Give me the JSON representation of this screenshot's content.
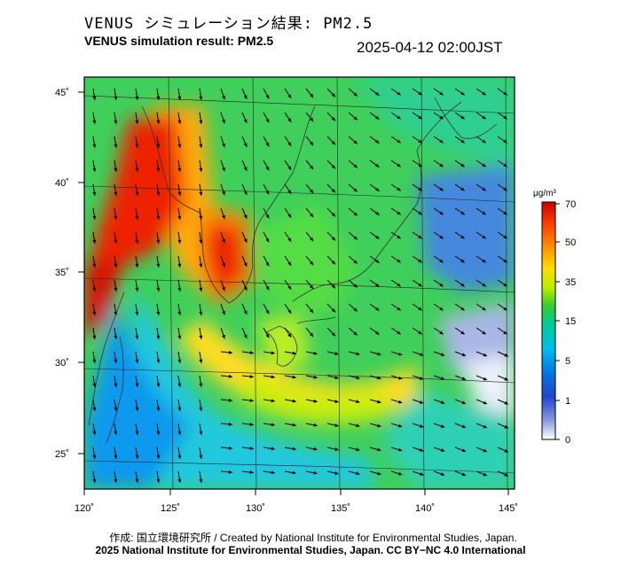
{
  "header": {
    "title_jp": "VENUS シミュレーション結果: PM2.5",
    "title_en": "VENUS simulation result: PM2.5",
    "timestamp": "2025-04-12 02:00JST"
  },
  "map": {
    "lon_labels": [
      "120˚",
      "125˚",
      "130˚",
      "135˚",
      "140˚",
      "145˚"
    ],
    "lat_labels": [
      "45˚",
      "40˚",
      "35˚",
      "30˚",
      "25˚"
    ],
    "lon_values": [
      120,
      125,
      130,
      135,
      140,
      145
    ],
    "lat_values": [
      45,
      40,
      35,
      30,
      25
    ]
  },
  "colorbar": {
    "unit": "μg/m³",
    "tick_labels": [
      "70",
      "50",
      "35",
      "15",
      "5",
      "1",
      "0"
    ],
    "colors": [
      "#cc0000",
      "#ff4400",
      "#ff9900",
      "#ffdd00",
      "#bbee00",
      "#33cc33",
      "#00cc99",
      "#00bbee",
      "#0077dd",
      "#2244cc",
      "#8899dd",
      "#ffffff"
    ]
  },
  "footer": {
    "credit": "作成: 国立環境研究所 / Created by National Institute for Environmental Studies, Japan.",
    "license": "2025 National Institute for Environmental Studies, Japan. CC BY−NC 4.0 International"
  }
}
